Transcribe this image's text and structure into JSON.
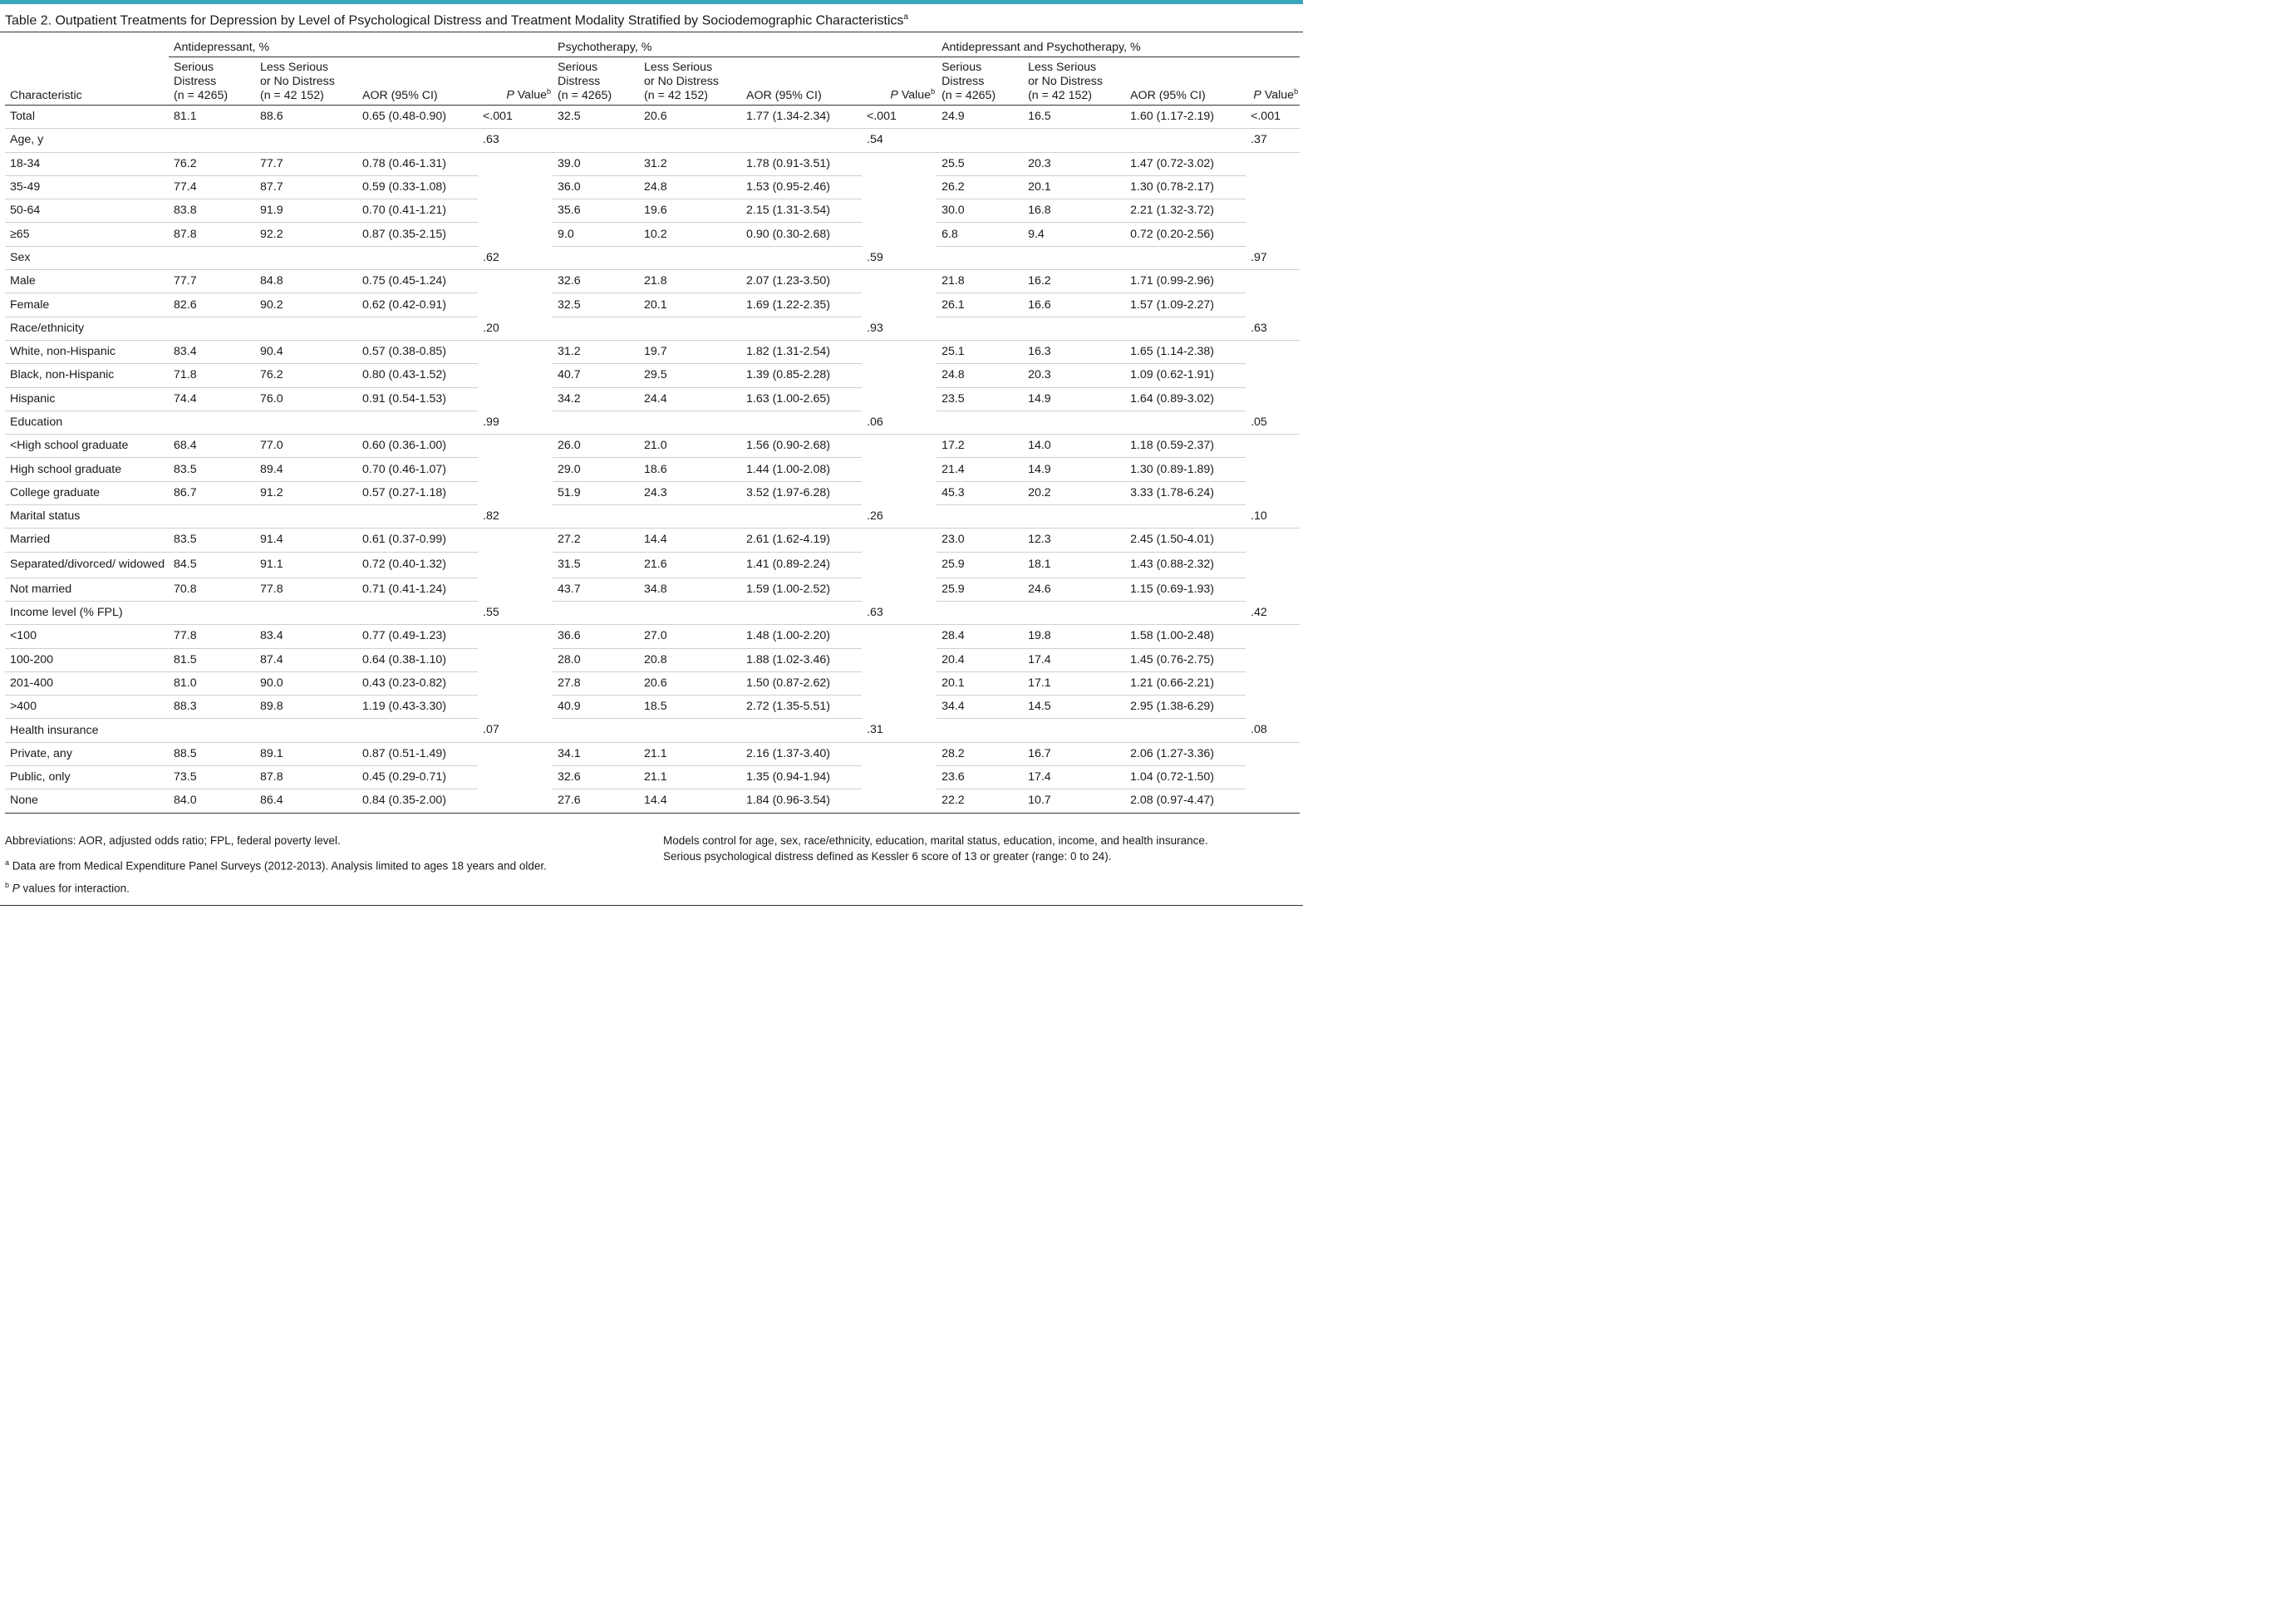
{
  "title": "Table 2. Outpatient Treatments for Depression by Level of Psychological Distress and Treatment Modality Stratified by Sociodemographic Characteristics",
  "title_sup": "a",
  "groups": [
    "Antidepressant, %",
    "Psychotherapy, %",
    "Antidepressant and Psychotherapy, %"
  ],
  "headers": {
    "characteristic": "Characteristic",
    "serious_1": "Serious",
    "serious_2": "Distress",
    "serious_3": "(n = 4265)",
    "less_1": "Less Serious",
    "less_2": "or No Distress",
    "less_3": "(n = 42 152)",
    "aor": "AOR (95% CI)",
    "p": "P",
    "p_rest": " Value",
    "p_sup": "b"
  },
  "rows": [
    {
      "type": "total",
      "label": "Total",
      "c": [
        "81.1",
        "88.6",
        "0.65 (0.48-0.90)",
        "<.001",
        "32.5",
        "20.6",
        "1.77 (1.34-2.34)",
        "<.001",
        "24.9",
        "16.5",
        "1.60 (1.17-2.19)",
        "<.001"
      ]
    },
    {
      "type": "group",
      "label": "Age, y",
      "p": [
        ".63",
        ".54",
        ".37"
      ]
    },
    {
      "type": "sub",
      "label": "18-34",
      "c": [
        "76.2",
        "77.7",
        "0.78 (0.46-1.31)",
        "39.0",
        "31.2",
        "1.78 (0.91-3.51)",
        "25.5",
        "20.3",
        "1.47 (0.72-3.02)"
      ]
    },
    {
      "type": "sub",
      "label": "35-49",
      "c": [
        "77.4",
        "87.7",
        "0.59 (0.33-1.08)",
        "36.0",
        "24.8",
        "1.53 (0.95-2.46)",
        "26.2",
        "20.1",
        "1.30 (0.78-2.17)"
      ]
    },
    {
      "type": "sub",
      "label": "50-64",
      "c": [
        "83.8",
        "91.9",
        "0.70 (0.41-1.21)",
        "35.6",
        "19.6",
        "2.15 (1.31-3.54)",
        "30.0",
        "16.8",
        "2.21 (1.32-3.72)"
      ]
    },
    {
      "type": "sub",
      "label": "≥65",
      "c": [
        "87.8",
        "92.2",
        "0.87 (0.35-2.15)",
        "9.0",
        "10.2",
        "0.90 (0.30-2.68)",
        "6.8",
        "9.4",
        "0.72 (0.20-2.56)"
      ]
    },
    {
      "type": "group",
      "label": "Sex",
      "p": [
        ".62",
        ".59",
        ".97"
      ]
    },
    {
      "type": "sub",
      "label": "Male",
      "c": [
        "77.7",
        "84.8",
        "0.75 (0.45-1.24)",
        "32.6",
        "21.8",
        "2.07 (1.23-3.50)",
        "21.8",
        "16.2",
        "1.71 (0.99-2.96)"
      ]
    },
    {
      "type": "sub",
      "label": "Female",
      "c": [
        "82.6",
        "90.2",
        "0.62 (0.42-0.91)",
        "32.5",
        "20.1",
        "1.69 (1.22-2.35)",
        "26.1",
        "16.6",
        "1.57 (1.09-2.27)"
      ]
    },
    {
      "type": "group",
      "label": "Race/ethnicity",
      "p": [
        ".20",
        ".93",
        ".63"
      ]
    },
    {
      "type": "sub",
      "label": "White, non-Hispanic",
      "c": [
        "83.4",
        "90.4",
        "0.57 (0.38-0.85)",
        "31.2",
        "19.7",
        "1.82 (1.31-2.54)",
        "25.1",
        "16.3",
        "1.65 (1.14-2.38)"
      ]
    },
    {
      "type": "sub",
      "label": "Black, non-Hispanic",
      "c": [
        "71.8",
        "76.2",
        "0.80 (0.43-1.52)",
        "40.7",
        "29.5",
        "1.39 (0.85-2.28)",
        "24.8",
        "20.3",
        "1.09 (0.62-1.91)"
      ]
    },
    {
      "type": "sub",
      "label": "Hispanic",
      "c": [
        "74.4",
        "76.0",
        "0.91 (0.54-1.53)",
        "34.2",
        "24.4",
        "1.63 (1.00-2.65)",
        "23.5",
        "14.9",
        "1.64 (0.89-3.02)"
      ]
    },
    {
      "type": "group",
      "label": "Education",
      "p": [
        ".99",
        ".06",
        ".05"
      ]
    },
    {
      "type": "sub",
      "label": "<High school graduate",
      "c": [
        "68.4",
        "77.0",
        "0.60 (0.36-1.00)",
        "26.0",
        "21.0",
        "1.56 (0.90-2.68)",
        "17.2",
        "14.0",
        "1.18 (0.59-2.37)"
      ]
    },
    {
      "type": "sub",
      "label": "High school graduate",
      "c": [
        "83.5",
        "89.4",
        "0.70 (0.46-1.07)",
        "29.0",
        "18.6",
        "1.44 (1.00-2.08)",
        "21.4",
        "14.9",
        "1.30 (0.89-1.89)"
      ]
    },
    {
      "type": "sub",
      "label": "College graduate",
      "c": [
        "86.7",
        "91.2",
        "0.57 (0.27-1.18)",
        "51.9",
        "24.3",
        "3.52 (1.97-6.28)",
        "45.3",
        "20.2",
        "3.33 (1.78-6.24)"
      ]
    },
    {
      "type": "group",
      "label": "Marital status",
      "p": [
        ".82",
        ".26",
        ".10"
      ]
    },
    {
      "type": "sub",
      "label": "Married",
      "c": [
        "83.5",
        "91.4",
        "0.61 (0.37-0.99)",
        "27.2",
        "14.4",
        "2.61 (1.62-4.19)",
        "23.0",
        "12.3",
        "2.45 (1.50-4.01)"
      ]
    },
    {
      "type": "sub",
      "tall": true,
      "label": "Separated/divorced/ widowed",
      "c": [
        "84.5",
        "91.1",
        "0.72 (0.40-1.32)",
        "31.5",
        "21.6",
        "1.41 (0.89-2.24)",
        "25.9",
        "18.1",
        "1.43 (0.88-2.32)"
      ]
    },
    {
      "type": "sub",
      "label": "Not married",
      "c": [
        "70.8",
        "77.8",
        "0.71 (0.41-1.24)",
        "43.7",
        "34.8",
        "1.59 (1.00-2.52)",
        "25.9",
        "24.6",
        "1.15 (0.69-1.93)"
      ]
    },
    {
      "type": "group",
      "label": "Income level (% FPL)",
      "p": [
        ".55",
        ".63",
        ".42"
      ]
    },
    {
      "type": "sub",
      "label": "<100",
      "c": [
        "77.8",
        "83.4",
        "0.77 (0.49-1.23)",
        "36.6",
        "27.0",
        "1.48 (1.00-2.20)",
        "28.4",
        "19.8",
        "1.58 (1.00-2.48)"
      ]
    },
    {
      "type": "sub",
      "label": "100-200",
      "c": [
        "81.5",
        "87.4",
        "0.64 (0.38-1.10)",
        "28.0",
        "20.8",
        "1.88 (1.02-3.46)",
        "20.4",
        "17.4",
        "1.45 (0.76-2.75)"
      ]
    },
    {
      "type": "sub",
      "label": "201-400",
      "c": [
        "81.0",
        "90.0",
        "0.43 (0.23-0.82)",
        "27.8",
        "20.6",
        "1.50 (0.87-2.62)",
        "20.1",
        "17.1",
        "1.21 (0.66-2.21)"
      ]
    },
    {
      "type": "sub",
      "label": ">400",
      "c": [
        "88.3",
        "89.8",
        "1.19 (0.43-3.30)",
        "40.9",
        "18.5",
        "2.72 (1.35-5.51)",
        "34.4",
        "14.5",
        "2.95 (1.38-6.29)"
      ]
    },
    {
      "type": "group",
      "label": "Health insurance",
      "p": [
        ".07",
        ".31",
        ".08"
      ]
    },
    {
      "type": "sub",
      "label": "Private, any",
      "c": [
        "88.5",
        "89.1",
        "0.87 (0.51-1.49)",
        "34.1",
        "21.1",
        "2.16 (1.37-3.40)",
        "28.2",
        "16.7",
        "2.06 (1.27-3.36)"
      ]
    },
    {
      "type": "sub",
      "label": "Public, only",
      "c": [
        "73.5",
        "87.8",
        "0.45 (0.29-0.71)",
        "32.6",
        "21.1",
        "1.35 (0.94-1.94)",
        "23.6",
        "17.4",
        "1.04 (0.72-1.50)"
      ]
    },
    {
      "type": "sub",
      "label": "None",
      "c": [
        "84.0",
        "86.4",
        "0.84 (0.35-2.00)",
        "27.6",
        "14.4",
        "1.84 (0.96-3.54)",
        "22.2",
        "10.7",
        "2.08 (0.97-4.47)"
      ]
    }
  ],
  "footnotes": {
    "abbrev": "Abbreviations: AOR, adjusted odds ratio; FPL, federal poverty level.",
    "a_mark": "a",
    "a_text": " Data are from Medical Expenditure Panel Surveys (2012-2013). Analysis limited to ages 18 years and older.",
    "b_mark": "b",
    "b_p": "P",
    "b_text": " values for interaction.",
    "models_1": "Models control for age, sex, race/ethnicity, education, marital status, education, income, and health insurance.",
    "models_2": "Serious psychological distress defined as Kessler 6 score of 13 or greater (range: 0 to 24)."
  }
}
